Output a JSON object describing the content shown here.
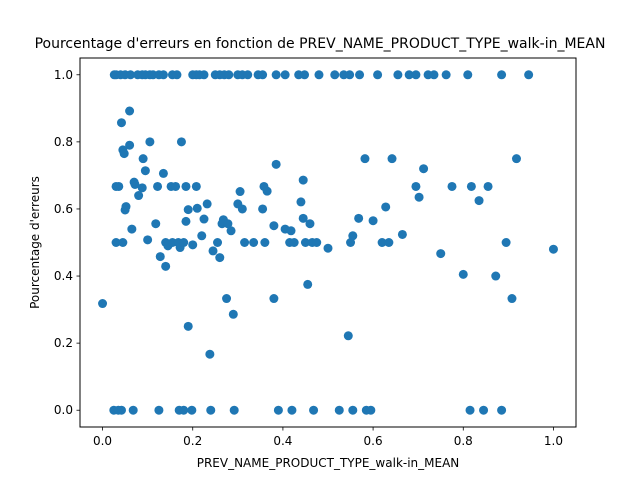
{
  "chart_data": {
    "type": "scatter",
    "title": "Pourcentage d'erreurs en fonction de PREV_NAME_PRODUCT_TYPE_walk-in_MEAN",
    "xlabel": "PREV_NAME_PRODUCT_TYPE_walk-in_MEAN",
    "ylabel": "Pourcentage d'erreurs",
    "xlim": [
      -0.05,
      1.05
    ],
    "ylim": [
      -0.05,
      1.05
    ],
    "xticks": [
      "0.0",
      "0.2",
      "0.4",
      "0.6",
      "0.8",
      "1.0"
    ],
    "yticks": [
      "0.0",
      "0.2",
      "0.4",
      "0.6",
      "0.8",
      "1.0"
    ],
    "grid": false,
    "legend": "none",
    "marker_color": "#1f77b4",
    "points": [
      [
        0.0,
        0.318
      ],
      [
        0.026,
        1.0
      ],
      [
        0.03,
        1.0
      ],
      [
        0.04,
        1.0
      ],
      [
        0.05,
        1.0
      ],
      [
        0.062,
        1.0
      ],
      [
        0.078,
        1.0
      ],
      [
        0.088,
        1.0
      ],
      [
        0.095,
        1.0
      ],
      [
        0.105,
        1.0
      ],
      [
        0.112,
        1.0
      ],
      [
        0.125,
        1.0
      ],
      [
        0.135,
        1.0
      ],
      [
        0.155,
        1.0
      ],
      [
        0.165,
        1.0
      ],
      [
        0.2,
        1.0
      ],
      [
        0.208,
        1.0
      ],
      [
        0.215,
        1.0
      ],
      [
        0.225,
        1.0
      ],
      [
        0.25,
        1.0
      ],
      [
        0.26,
        1.0
      ],
      [
        0.27,
        1.0
      ],
      [
        0.28,
        1.0
      ],
      [
        0.3,
        1.0
      ],
      [
        0.31,
        1.0
      ],
      [
        0.322,
        1.0
      ],
      [
        0.345,
        1.0
      ],
      [
        0.355,
        1.0
      ],
      [
        0.385,
        1.0
      ],
      [
        0.405,
        1.0
      ],
      [
        0.435,
        1.0
      ],
      [
        0.448,
        1.0
      ],
      [
        0.48,
        1.0
      ],
      [
        0.515,
        1.0
      ],
      [
        0.535,
        1.0
      ],
      [
        0.548,
        1.0
      ],
      [
        0.57,
        1.0
      ],
      [
        0.61,
        1.0
      ],
      [
        0.655,
        1.0
      ],
      [
        0.68,
        1.0
      ],
      [
        0.695,
        1.0
      ],
      [
        0.722,
        1.0
      ],
      [
        0.735,
        1.0
      ],
      [
        0.762,
        1.0
      ],
      [
        0.81,
        1.0
      ],
      [
        0.885,
        1.0
      ],
      [
        0.945,
        1.0
      ],
      [
        0.025,
        0.0
      ],
      [
        0.035,
        0.0
      ],
      [
        0.042,
        0.0
      ],
      [
        0.068,
        0.0
      ],
      [
        0.125,
        0.0
      ],
      [
        0.17,
        0.0
      ],
      [
        0.18,
        0.0
      ],
      [
        0.198,
        0.0
      ],
      [
        0.24,
        0.0
      ],
      [
        0.292,
        0.0
      ],
      [
        0.39,
        0.0
      ],
      [
        0.42,
        0.0
      ],
      [
        0.468,
        0.0
      ],
      [
        0.525,
        0.0
      ],
      [
        0.555,
        0.0
      ],
      [
        0.585,
        0.0
      ],
      [
        0.595,
        0.0
      ],
      [
        0.815,
        0.0
      ],
      [
        0.845,
        0.0
      ],
      [
        0.885,
        0.0
      ],
      [
        0.06,
        0.892
      ],
      [
        0.042,
        0.857
      ],
      [
        0.105,
        0.8
      ],
      [
        0.175,
        0.8
      ],
      [
        0.06,
        0.79
      ],
      [
        0.045,
        0.776
      ],
      [
        0.048,
        0.765
      ],
      [
        0.09,
        0.75
      ],
      [
        0.582,
        0.75
      ],
      [
        0.642,
        0.75
      ],
      [
        0.918,
        0.75
      ],
      [
        0.385,
        0.733
      ],
      [
        0.712,
        0.72
      ],
      [
        0.095,
        0.714
      ],
      [
        0.135,
        0.706
      ],
      [
        0.445,
        0.686
      ],
      [
        0.07,
        0.68
      ],
      [
        0.072,
        0.673
      ],
      [
        0.03,
        0.667
      ],
      [
        0.036,
        0.667
      ],
      [
        0.088,
        0.663
      ],
      [
        0.122,
        0.667
      ],
      [
        0.152,
        0.667
      ],
      [
        0.162,
        0.667
      ],
      [
        0.185,
        0.667
      ],
      [
        0.208,
        0.667
      ],
      [
        0.358,
        0.667
      ],
      [
        0.695,
        0.667
      ],
      [
        0.775,
        0.667
      ],
      [
        0.818,
        0.667
      ],
      [
        0.855,
        0.667
      ],
      [
        0.365,
        0.653
      ],
      [
        0.305,
        0.652
      ],
      [
        0.08,
        0.64
      ],
      [
        0.702,
        0.635
      ],
      [
        0.835,
        0.625
      ],
      [
        0.44,
        0.621
      ],
      [
        0.232,
        0.615
      ],
      [
        0.3,
        0.615
      ],
      [
        0.21,
        0.602
      ],
      [
        0.052,
        0.607
      ],
      [
        0.05,
        0.597
      ],
      [
        0.19,
        0.598
      ],
      [
        0.31,
        0.6
      ],
      [
        0.355,
        0.6
      ],
      [
        0.628,
        0.606
      ],
      [
        0.225,
        0.57
      ],
      [
        0.268,
        0.568
      ],
      [
        0.445,
        0.572
      ],
      [
        0.568,
        0.572
      ],
      [
        0.6,
        0.565
      ],
      [
        0.185,
        0.563
      ],
      [
        0.118,
        0.556
      ],
      [
        0.265,
        0.556
      ],
      [
        0.278,
        0.556
      ],
      [
        0.46,
        0.556
      ],
      [
        0.065,
        0.54
      ],
      [
        0.285,
        0.535
      ],
      [
        0.38,
        0.55
      ],
      [
        0.405,
        0.54
      ],
      [
        0.418,
        0.535
      ],
      [
        0.665,
        0.524
      ],
      [
        0.555,
        0.52
      ],
      [
        0.22,
        0.52
      ],
      [
        0.03,
        0.5
      ],
      [
        0.045,
        0.5
      ],
      [
        0.1,
        0.508
      ],
      [
        0.14,
        0.5
      ],
      [
        0.145,
        0.49
      ],
      [
        0.155,
        0.5
      ],
      [
        0.168,
        0.5
      ],
      [
        0.172,
        0.485
      ],
      [
        0.18,
        0.5
      ],
      [
        0.2,
        0.493
      ],
      [
        0.255,
        0.5
      ],
      [
        0.315,
        0.5
      ],
      [
        0.335,
        0.5
      ],
      [
        0.36,
        0.5
      ],
      [
        0.415,
        0.5
      ],
      [
        0.425,
        0.5
      ],
      [
        0.45,
        0.5
      ],
      [
        0.465,
        0.5
      ],
      [
        0.475,
        0.5
      ],
      [
        0.55,
        0.5
      ],
      [
        0.62,
        0.5
      ],
      [
        0.635,
        0.5
      ],
      [
        0.895,
        0.5
      ],
      [
        0.5,
        0.483
      ],
      [
        1.0,
        0.48
      ],
      [
        0.245,
        0.475
      ],
      [
        0.75,
        0.467
      ],
      [
        0.128,
        0.458
      ],
      [
        0.26,
        0.455
      ],
      [
        0.14,
        0.429
      ],
      [
        0.8,
        0.405
      ],
      [
        0.872,
        0.4
      ],
      [
        0.455,
        0.375
      ],
      [
        0.275,
        0.333
      ],
      [
        0.38,
        0.333
      ],
      [
        0.908,
        0.333
      ],
      [
        0.29,
        0.286
      ],
      [
        0.19,
        0.25
      ],
      [
        0.545,
        0.222
      ],
      [
        0.238,
        0.167
      ]
    ]
  }
}
